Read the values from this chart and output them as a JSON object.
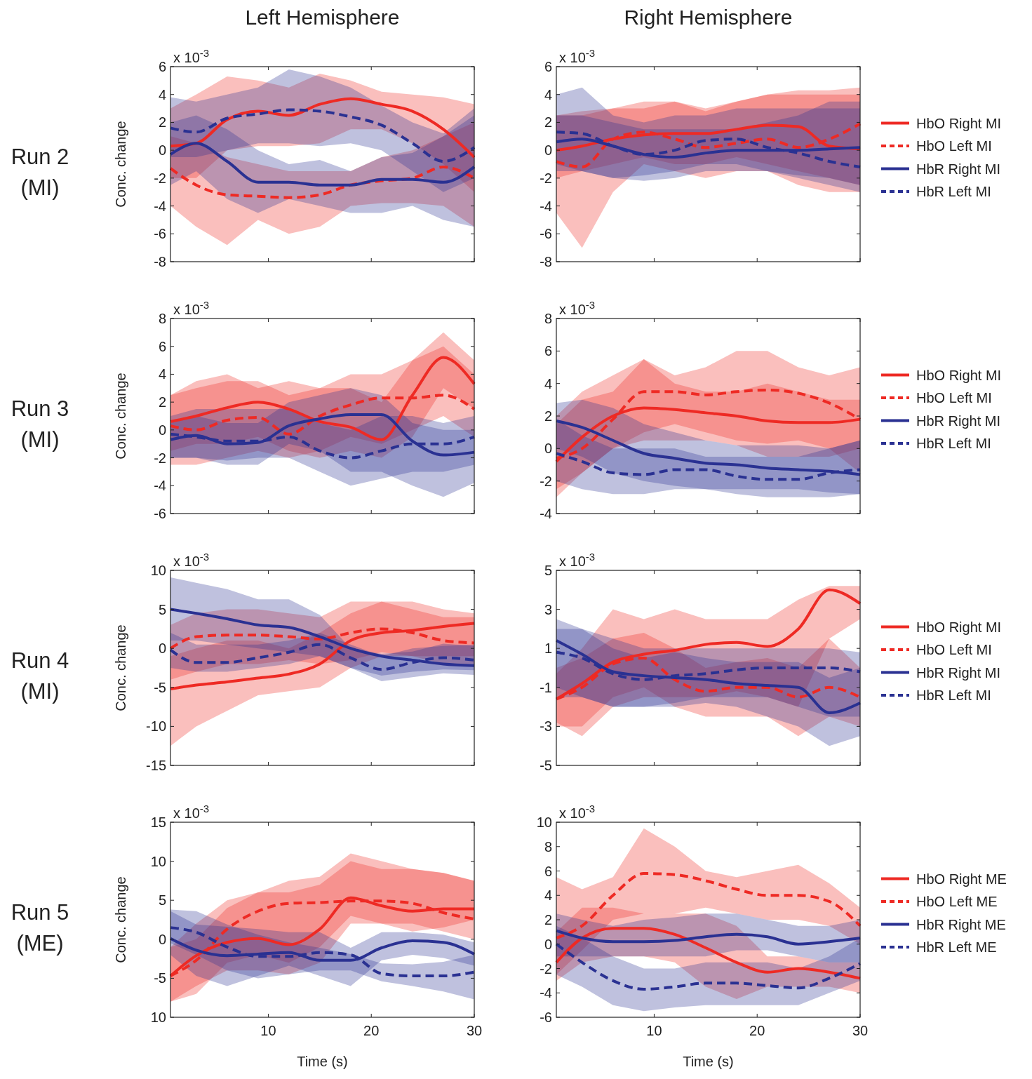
{
  "chart_data": [
    {
      "type": "line",
      "title": "Left Hemisphere",
      "ylabel": "Conc. change",
      "annotations": [
        "x 10$^{-3}$",
        "Run 2",
        "(MI)"
      ],
      "x": [
        0.5,
        3,
        6,
        9,
        12,
        15,
        18,
        21,
        24,
        27,
        30
      ],
      "xlim": [
        0.5,
        30
      ],
      "xticks": [
        {
          "value": 10,
          "label": null
        },
        {
          "value": 20,
          "label": null
        },
        {
          "value": 30,
          "label": null
        }
      ],
      "ylim": [
        -8,
        6
      ],
      "yticks": [
        -8,
        -6,
        -4,
        -2,
        0,
        2,
        4,
        6
      ],
      "tick_labels": "y",
      "legend": false,
      "grid": false,
      "series": [
        {
          "color": "#ee2a24",
          "line_style": "solid",
          "values": [
            0.3,
            0.5,
            2.2,
            2.8,
            2.5,
            3.3,
            3.7,
            3.3,
            2.8,
            1.5,
            -0.5
          ],
          "lower": [
            -2,
            -2,
            0,
            0.3,
            0.3,
            0.5,
            1.5,
            1.5,
            0.5,
            -1,
            -3
          ],
          "upper": [
            3,
            4,
            5.3,
            5,
            4.5,
            5.5,
            5,
            4.2,
            4,
            3.8,
            3.3
          ]
        },
        {
          "color": "#ee2a24",
          "line_style": "dashed",
          "values": [
            -1.3,
            -2.5,
            -3.2,
            -3.3,
            -3.4,
            -3.2,
            -2.5,
            -2.2,
            -2,
            -1.2,
            -2
          ],
          "lower": [
            -4,
            -5.5,
            -6.8,
            -5,
            -6,
            -5.5,
            -4,
            -3.8,
            -3.8,
            -4,
            -5.5
          ],
          "upper": [
            1,
            0.5,
            -0.5,
            -1,
            -1.5,
            -1.5,
            -1.5,
            -0.5,
            0,
            1,
            2
          ]
        },
        {
          "color": "#2a3192",
          "line_style": "solid",
          "values": [
            -0.3,
            0.5,
            -0.8,
            -2.3,
            -2.3,
            -2.5,
            -2.5,
            -2.1,
            -2.1,
            -2.3,
            -1.2
          ],
          "lower": [
            -2.5,
            -1.5,
            -3.5,
            -4.5,
            -3.5,
            -4,
            -4.5,
            -4.5,
            -4,
            -5,
            -5.5
          ],
          "upper": [
            2,
            2.5,
            1.5,
            0,
            -1,
            -0.7,
            -1.5,
            -0.5,
            -0.2,
            1,
            2.5
          ]
        },
        {
          "color": "#2a3192",
          "line_style": "dashed",
          "values": [
            1.6,
            1.3,
            2.3,
            2.6,
            2.9,
            2.8,
            2.4,
            1.8,
            0.5,
            -0.8,
            0.2
          ],
          "lower": [
            -0.5,
            -0.5,
            0,
            0.5,
            0.5,
            0.3,
            0.5,
            0,
            -1.5,
            -3,
            -2
          ],
          "upper": [
            3.8,
            3.5,
            4,
            4.5,
            5.8,
            5.3,
            4.5,
            3.2,
            2,
            1.2,
            3
          ]
        }
      ]
    },
    {
      "type": "line",
      "title": "Right Hemisphere",
      "annotations": [
        "x 10$^{-3}$"
      ],
      "x": [
        0.5,
        3,
        6,
        9,
        12,
        15,
        18,
        21,
        24,
        27,
        30
      ],
      "xlim": [
        0.5,
        30
      ],
      "xticks": [
        {
          "value": 10,
          "label": null
        },
        {
          "value": 20,
          "label": null
        },
        {
          "value": 30,
          "label": null
        }
      ],
      "ylim": [
        -8,
        6
      ],
      "yticks": [
        -8,
        -6,
        -4,
        -2,
        0,
        2,
        4,
        6
      ],
      "tick_labels": "y",
      "legend": "right",
      "grid": false,
      "series": [
        {
          "name": "HbO Right MI",
          "color": "#ee2a24",
          "line_style": "solid",
          "values": [
            0,
            0.3,
            0.8,
            1.1,
            1.2,
            1.2,
            1.5,
            1.8,
            1.7,
            0.3,
            0.1
          ],
          "lower": [
            -2,
            -1.5,
            -1,
            -0.5,
            -1,
            -1,
            -0.5,
            -1,
            -1.5,
            -2,
            -2.5
          ],
          "upper": [
            2.5,
            2.5,
            3,
            3,
            3.5,
            3,
            3.5,
            4,
            4,
            4,
            4
          ]
        },
        {
          "name": "HbO Left MI",
          "color": "#ee2a24",
          "line_style": "dashed",
          "values": [
            -0.8,
            -1.2,
            0.8,
            1.3,
            0.8,
            0.2,
            0.5,
            0.8,
            0.2,
            0.8,
            1.9
          ],
          "lower": [
            -4.5,
            -7,
            -3,
            -1,
            -1.5,
            -2,
            -1.5,
            -1.5,
            -2.5,
            -3,
            -3
          ],
          "upper": [
            2.5,
            2.8,
            3,
            3.5,
            3.5,
            2.8,
            3.5,
            4,
            4.3,
            4.3,
            4.5
          ]
        },
        {
          "name": "HbR Right MI",
          "color": "#2a3192",
          "line_style": "solid",
          "values": [
            0.6,
            0.8,
            0.3,
            -0.3,
            -0.5,
            -0.2,
            0,
            0,
            0,
            0.1,
            0.2
          ],
          "lower": [
            -1.5,
            -1.5,
            -2,
            -2.2,
            -2,
            -1.5,
            -1.5,
            -1.5,
            -1.8,
            -2,
            -2.5
          ],
          "upper": [
            2.5,
            2.5,
            2,
            1.5,
            1.5,
            1.5,
            1.5,
            2,
            2.5,
            3.5,
            3.5
          ]
        },
        {
          "name": "HbR Left MI",
          "color": "#2a3192",
          "line_style": "dashed",
          "values": [
            1.3,
            1.2,
            0.3,
            -0.3,
            0,
            0.7,
            0.8,
            0.2,
            -0.2,
            -0.8,
            -1.2
          ],
          "lower": [
            -1,
            -1.5,
            -2,
            -1.8,
            -1.5,
            -1,
            -1,
            -1.5,
            -2,
            -2.5,
            -3
          ],
          "upper": [
            4,
            4.5,
            2.5,
            2,
            2.5,
            2.5,
            3,
            3,
            3,
            3,
            3
          ]
        }
      ]
    },
    {
      "type": "line",
      "ylabel": "Conc. change",
      "annotations": [
        "x 10$^{-3}$",
        "Run 3",
        "(MI)"
      ],
      "x": [
        0.5,
        3,
        6,
        9,
        12,
        15,
        18,
        21,
        24,
        27,
        30
      ],
      "xlim": [
        0.5,
        30
      ],
      "xticks": [
        {
          "value": 10,
          "label": null
        },
        {
          "value": 20,
          "label": null
        },
        {
          "value": 30,
          "label": null
        }
      ],
      "ylim": [
        -6,
        8
      ],
      "yticks": [
        -6,
        -4,
        -2,
        0,
        2,
        4,
        6,
        8
      ],
      "tick_labels": "y",
      "legend": false,
      "grid": false,
      "series": [
        {
          "color": "#ee2a24",
          "line_style": "solid",
          "values": [
            0.6,
            1,
            1.6,
            2,
            1.5,
            0.6,
            0.2,
            -0.7,
            2.5,
            5.2,
            3.3
          ],
          "lower": [
            -1.5,
            -1,
            -1,
            -0.5,
            -1.5,
            -2,
            -1.5,
            -2,
            -0.5,
            3,
            1.5
          ],
          "upper": [
            2.5,
            3.5,
            4,
            3,
            3.5,
            3,
            3,
            2,
            5,
            7,
            5
          ]
        },
        {
          "color": "#ee2a24",
          "line_style": "dashed",
          "values": [
            0.3,
            0,
            0.7,
            0.9,
            -0.3,
            1,
            1.8,
            2.3,
            2.3,
            2.5,
            1.5
          ],
          "lower": [
            -2.5,
            -2.5,
            -2,
            -1.5,
            -2,
            -1.5,
            -0.5,
            -1,
            0,
            1,
            -0.5
          ],
          "upper": [
            2.5,
            3,
            3.5,
            3.5,
            2.5,
            3,
            4,
            4,
            5,
            6,
            4
          ]
        },
        {
          "color": "#2a3192",
          "line_style": "solid",
          "values": [
            -0.7,
            -0.4,
            -1,
            -0.9,
            0.3,
            0.8,
            1.1,
            1.1,
            -0.8,
            -1.8,
            -1.6
          ],
          "lower": [
            -2,
            -2,
            -2.5,
            -2.5,
            -1,
            -1.5,
            -3,
            -3,
            -4,
            -4.8,
            -3.8
          ],
          "upper": [
            0.5,
            1,
            0.5,
            0.5,
            2,
            2.5,
            3,
            2.5,
            0.5,
            0,
            0
          ]
        },
        {
          "color": "#2a3192",
          "line_style": "dashed",
          "values": [
            -0.3,
            -0.5,
            -0.8,
            -0.8,
            -0.5,
            -1.5,
            -2,
            -1.5,
            -1,
            -1,
            -0.5
          ],
          "lower": [
            -2,
            -2,
            -2.2,
            -2,
            -2,
            -3,
            -4,
            -3.5,
            -3,
            -3,
            -2.5
          ],
          "upper": [
            1,
            1.5,
            1.5,
            1.5,
            1.5,
            0.5,
            0,
            1,
            1,
            0.5,
            1
          ]
        }
      ]
    },
    {
      "type": "line",
      "annotations": [
        "x 10$^{-3}$"
      ],
      "x": [
        0.5,
        3,
        6,
        9,
        12,
        15,
        18,
        21,
        24,
        27,
        30
      ],
      "xlim": [
        0.5,
        30
      ],
      "xticks": [
        {
          "value": 10,
          "label": null
        },
        {
          "value": 20,
          "label": null
        },
        {
          "value": 30,
          "label": null
        }
      ],
      "ylim": [
        -4,
        8
      ],
      "yticks": [
        -4,
        -2,
        0,
        2,
        4,
        6,
        8
      ],
      "tick_labels": "y",
      "legend": "right",
      "grid": false,
      "series": [
        {
          "name": "HbO Right MI",
          "color": "#ee2a24",
          "line_style": "solid",
          "values": [
            -0.8,
            0.7,
            2,
            2.5,
            2.4,
            2.2,
            2,
            1.7,
            1.6,
            1.6,
            1.8
          ],
          "lower": [
            -3,
            -1.5,
            0,
            0.5,
            0.5,
            0.5,
            0.2,
            -0.5,
            -0.5,
            -0.5,
            0
          ],
          "upper": [
            1.5,
            3,
            3.5,
            5.5,
            4,
            3.5,
            3.5,
            4,
            3.5,
            3,
            3
          ]
        },
        {
          "name": "HbO Left MI",
          "color": "#ee2a24",
          "line_style": "dashed",
          "values": [
            -0.6,
            0,
            1.8,
            3.5,
            3.5,
            3.3,
            3.5,
            3.6,
            3.4,
            2.8,
            1.8
          ],
          "lower": [
            -2.5,
            -1.5,
            0,
            1,
            1.5,
            1,
            0.5,
            0.3,
            0.5,
            0,
            -1.5
          ],
          "upper": [
            2,
            3.5,
            4.5,
            5.5,
            4.5,
            5,
            6,
            6,
            5,
            4.5,
            5
          ]
        },
        {
          "name": "HbR Right MI",
          "color": "#2a3192",
          "line_style": "solid",
          "values": [
            1.7,
            1.3,
            0.5,
            -0.3,
            -0.6,
            -0.9,
            -1,
            -1.2,
            -1.3,
            -1.4,
            -1.6
          ],
          "lower": [
            0,
            -0.5,
            -1.5,
            -2,
            -2.3,
            -2.5,
            -2.5,
            -2.5,
            -2.5,
            -2.7,
            -2.8
          ],
          "upper": [
            2.8,
            3,
            2.5,
            1.5,
            1,
            0.5,
            0.2,
            0.2,
            0.2,
            0,
            0.5
          ]
        },
        {
          "name": "HbR Left MI",
          "color": "#2a3192",
          "line_style": "dashed",
          "values": [
            -0.3,
            -0.8,
            -1.5,
            -1.6,
            -1.3,
            -1.3,
            -1.7,
            -1.9,
            -1.9,
            -1.5,
            -1.3
          ],
          "lower": [
            -2,
            -2.5,
            -2.8,
            -2.8,
            -2.5,
            -2.5,
            -2.8,
            -3,
            -3,
            -3,
            -2.8
          ],
          "upper": [
            1.8,
            0.8,
            0,
            0,
            0,
            -0.5,
            -0.5,
            -0.5,
            -0.5,
            0,
            0.5
          ]
        }
      ]
    },
    {
      "type": "line",
      "ylabel": "Conc. change",
      "annotations": [
        "x 10$^{-3}$",
        "Run 4",
        "(MI)"
      ],
      "x": [
        0.5,
        3,
        6,
        9,
        12,
        15,
        18,
        21,
        24,
        27,
        30
      ],
      "xlim": [
        0.5,
        30
      ],
      "xticks": [
        {
          "value": 10,
          "label": null
        },
        {
          "value": 20,
          "label": null
        },
        {
          "value": 30,
          "label": null
        }
      ],
      "ylim": [
        -15,
        10
      ],
      "yticks": [
        -15,
        -10,
        -5,
        0,
        5,
        10
      ],
      "tick_labels": "y",
      "legend": false,
      "grid": false,
      "series": [
        {
          "color": "#ee2a24",
          "line_style": "solid",
          "values": [
            -5.2,
            -4.7,
            -4.3,
            -3.8,
            -3.3,
            -2,
            1,
            2,
            2.3,
            2.8,
            3.2
          ],
          "lower": [
            -12.5,
            -10,
            -8,
            -6,
            -5.5,
            -5,
            -2.5,
            -1,
            -1,
            -1,
            -1
          ],
          "upper": [
            -1,
            0,
            1,
            1,
            0,
            2,
            4.5,
            6,
            6,
            5,
            4.5
          ]
        },
        {
          "color": "#ee2a24",
          "line_style": "dashed",
          "values": [
            0,
            1.5,
            1.7,
            1.7,
            1.5,
            1.2,
            2,
            2.5,
            2,
            1,
            0.7
          ],
          "lower": [
            -4,
            -3,
            -2,
            -2,
            -1.5,
            -2,
            -1.5,
            -0.5,
            -1,
            -2,
            -2
          ],
          "upper": [
            3,
            4.5,
            5,
            5,
            4.5,
            4,
            6,
            6,
            5,
            4,
            4
          ]
        },
        {
          "color": "#2a3192",
          "line_style": "solid",
          "values": [
            5,
            4.5,
            3.8,
            3,
            2.7,
            1.5,
            0,
            -1,
            -1.5,
            -2,
            -2.2
          ],
          "lower": [
            1,
            1,
            0.5,
            0,
            -0.5,
            -1,
            -2.5,
            -4.2,
            -3.7,
            -3.2,
            -3.4
          ],
          "upper": [
            9.1,
            8.4,
            7.6,
            6.3,
            6.3,
            4.3,
            0,
            -0.7,
            -0.4,
            0.6,
            0.3
          ]
        },
        {
          "color": "#2a3192",
          "line_style": "dashed",
          "values": [
            -0.2,
            -1.8,
            -1.8,
            -1.2,
            -0.5,
            0.5,
            -1.2,
            -2.7,
            -1.8,
            -1.2,
            -1.5
          ],
          "lower": [
            -2.5,
            -3,
            -3,
            -2.5,
            -2,
            -1,
            -2.5,
            -3.5,
            -3,
            -2.7,
            -2.8
          ],
          "upper": [
            2,
            0.5,
            0.5,
            0.5,
            1,
            2,
            0.5,
            -1,
            0,
            0.3,
            0.5
          ]
        }
      ]
    },
    {
      "type": "line",
      "annotations": [
        "x 10$^{-3}$"
      ],
      "x": [
        0.5,
        3,
        6,
        9,
        12,
        15,
        18,
        21,
        24,
        27,
        30
      ],
      "xlim": [
        0.5,
        30
      ],
      "xticks": [
        {
          "value": 10,
          "label": null
        },
        {
          "value": 20,
          "label": null
        },
        {
          "value": 30,
          "label": null
        }
      ],
      "ylim": [
        -5,
        5
      ],
      "yticks": [
        -5,
        -3,
        -1,
        1,
        3,
        5
      ],
      "tick_labels": "y",
      "legend": "right",
      "grid": false,
      "series": [
        {
          "name": "HbO Right MI",
          "color": "#ee2a24",
          "line_style": "solid",
          "values": [
            -1.6,
            -0.8,
            0.3,
            0.7,
            0.9,
            1.2,
            1.3,
            1.1,
            2,
            4,
            3.3
          ],
          "lower": [
            -2.8,
            -3.5,
            -2,
            -1.5,
            -1.5,
            -1.5,
            -1.2,
            -1.5,
            -2,
            1.5,
            2.5
          ],
          "upper": [
            -0.3,
            1,
            3,
            2.5,
            3,
            2.5,
            2.5,
            2.5,
            3.5,
            4.2,
            4.2
          ]
        },
        {
          "name": "HbO Left MI",
          "color": "#ee2a24",
          "line_style": "dashed",
          "values": [
            -1.6,
            -1,
            0.2,
            0.5,
            -0.6,
            -1.2,
            -1,
            -1,
            -1.5,
            -1,
            -1.5
          ],
          "lower": [
            -3,
            -3,
            -1.5,
            -1,
            -2,
            -2.5,
            -2.5,
            -2.5,
            -3.5,
            -2.5,
            -3
          ],
          "upper": [
            0,
            0.5,
            1.5,
            1.8,
            1,
            0,
            0.3,
            0.5,
            0,
            1.5,
            0
          ]
        },
        {
          "name": "HbR Right MI",
          "color": "#2a3192",
          "line_style": "solid",
          "values": [
            1.4,
            0.7,
            -0.2,
            -0.4,
            -0.5,
            -0.6,
            -0.8,
            -0.9,
            -1,
            -2.3,
            -1.8
          ],
          "lower": [
            -1,
            -1.5,
            -2,
            -2,
            -2,
            -1.8,
            -2,
            -2.5,
            -3,
            -4,
            -3.5
          ],
          "upper": [
            2.5,
            2,
            1,
            0.5,
            0.8,
            0.5,
            0.3,
            0.3,
            0.3,
            -0.5,
            0
          ]
        },
        {
          "name": "HbR Left MI",
          "color": "#2a3192",
          "line_style": "dashed",
          "values": [
            0.8,
            0.5,
            -0.3,
            -0.6,
            -0.4,
            -0.3,
            -0.1,
            0,
            0,
            0,
            -0.2
          ],
          "lower": [
            -1.5,
            -1.5,
            -2,
            -2,
            -1.8,
            -1.5,
            -1.5,
            -1.5,
            -2,
            -2.5,
            -2.5
          ],
          "upper": [
            2,
            2,
            1.5,
            1,
            1,
            1,
            1,
            1,
            1,
            1,
            0.8
          ]
        }
      ]
    },
    {
      "type": "line",
      "xlabel": "Time (s)",
      "ylabel": "Conc. change",
      "annotations": [
        "x 10$^{-3}$",
        "Run 5",
        "(ME)"
      ],
      "x": [
        0.5,
        3,
        6,
        9,
        12,
        15,
        18,
        21,
        24,
        27,
        30
      ],
      "xlim": [
        0.5,
        30
      ],
      "xticks": [
        10,
        20,
        30
      ],
      "ylim": [
        -10,
        15
      ],
      "yticks": [
        {
          "value": -10,
          "label": "10"
        },
        -5,
        0,
        5,
        10,
        15
      ],
      "legend": false,
      "grid": false,
      "series": [
        {
          "color": "#ee2a24",
          "line_style": "solid",
          "values": [
            -4.7,
            -2.1,
            -0.4,
            0.1,
            -0.7,
            1.3,
            5.3,
            4.3,
            3.6,
            3.9,
            3.9
          ],
          "lower": [
            -8,
            -6,
            -4,
            -4,
            -4.5,
            -3,
            2,
            2,
            1,
            1.5,
            2.5
          ],
          "upper": [
            -1,
            2,
            5,
            6,
            6,
            7,
            10,
            9,
            9,
            8.5,
            7.5
          ]
        },
        {
          "color": "#ee2a24",
          "line_style": "dashed",
          "values": [
            -4.7,
            -2.7,
            1.3,
            3.6,
            4.6,
            4.7,
            4.9,
            4.9,
            4.6,
            3.4,
            2.6
          ],
          "lower": [
            -8,
            -7,
            -3,
            -2,
            -3,
            -1,
            3,
            2,
            2,
            1,
            0
          ],
          "upper": [
            -1,
            0,
            4,
            6,
            7.5,
            8,
            11,
            10,
            9,
            8.5,
            7.5
          ]
        },
        {
          "color": "#2a3192",
          "line_style": "solid",
          "values": [
            0.1,
            -1.4,
            -2.1,
            -1.9,
            -1.7,
            -2.7,
            -2.7,
            -1.1,
            -0.2,
            -0.4,
            -1.9
          ],
          "lower": [
            -2,
            -4.7,
            -6,
            -4.7,
            -3.4,
            -4.7,
            -6,
            -2.7,
            -2,
            -2.4,
            -3.4
          ],
          "upper": [
            3.6,
            1.9,
            1.6,
            1.3,
            0.9,
            0.9,
            -1.1,
            0.9,
            0.9,
            0.6,
            -0.4
          ]
        },
        {
          "color": "#2a3192",
          "line_style": "dashed",
          "values": [
            1.5,
            0.9,
            -1,
            -2.2,
            -2.2,
            -1.7,
            -2,
            -4.4,
            -4.7,
            -4.7,
            -4.2
          ],
          "lower": [
            -0.5,
            -2,
            -4,
            -5,
            -4.5,
            -4,
            -4,
            -5.4,
            -6,
            -6.7,
            -7.7
          ],
          "upper": [
            3.8,
            3.6,
            1.9,
            0.6,
            -0.4,
            -1.1,
            -1.9,
            -3.1,
            -3.2,
            -2.9,
            -2
          ]
        }
      ]
    },
    {
      "type": "line",
      "xlabel": "Time (s)",
      "annotations": [
        "x 10$^{-3}$"
      ],
      "x": [
        0.5,
        3,
        6,
        9,
        12,
        15,
        18,
        21,
        24,
        27,
        30
      ],
      "xlim": [
        0.5,
        30
      ],
      "xticks": [
        10,
        20,
        30
      ],
      "ylim": [
        -6,
        10
      ],
      "yticks": [
        -6,
        -4,
        -2,
        0,
        2,
        4,
        6,
        8,
        10
      ],
      "legend": "right",
      "grid": false,
      "series": [
        {
          "name": "HbO Right ME",
          "color": "#ee2a24",
          "line_style": "solid",
          "values": [
            -1.5,
            0.5,
            1.3,
            1.3,
            0.8,
            -0.3,
            -1.5,
            -2.3,
            -2,
            -2.3,
            -2.8
          ],
          "lower": [
            -3,
            -1.5,
            -1,
            -1,
            -1.5,
            -3.5,
            -4.5,
            -3.5,
            -3.5,
            -3.5,
            -4
          ],
          "upper": [
            1,
            3,
            3,
            2.5,
            2.5,
            2.5,
            1.5,
            -1,
            -1,
            -1.5,
            -1.5
          ]
        },
        {
          "name": "HbO Left ME",
          "color": "#ee2a24",
          "line_style": "dashed",
          "values": [
            0.5,
            1.5,
            4,
            5.8,
            5.7,
            5.2,
            4.5,
            4,
            4,
            3.5,
            1.5
          ],
          "lower": [
            -2.5,
            -0.5,
            2,
            2.5,
            2.5,
            3,
            2.5,
            2,
            2,
            1.5,
            0
          ],
          "upper": [
            5.5,
            4.5,
            5.5,
            9.5,
            8,
            6,
            5.5,
            6,
            6.5,
            5,
            3
          ]
        },
        {
          "name": "HbR Right ME",
          "color": "#2a3192",
          "line_style": "solid",
          "values": [
            1.1,
            0.5,
            0.2,
            0.2,
            0.3,
            0.6,
            0.8,
            0.6,
            0,
            0.2,
            0.5
          ],
          "lower": [
            -1,
            -1,
            -1,
            -1,
            -1,
            -1,
            -0.5,
            -0.5,
            -1,
            -1.5,
            -1.5
          ],
          "upper": [
            2.5,
            2,
            1.5,
            2,
            2.2,
            2.5,
            2.5,
            2,
            1.5,
            1.5,
            2
          ]
        },
        {
          "name": "HbR Left ME",
          "color": "#2a3192",
          "line_style": "dashed",
          "values": [
            0,
            -1.5,
            -3,
            -3.7,
            -3.5,
            -3.2,
            -3.2,
            -3.4,
            -3.6,
            -2.8,
            -1.6
          ],
          "lower": [
            -2.5,
            -3.5,
            -5,
            -5.5,
            -5.2,
            -5,
            -5,
            -5,
            -5,
            -4,
            -3
          ],
          "upper": [
            1.5,
            0.5,
            -1,
            -2,
            -2,
            -1.5,
            -1.5,
            -1.5,
            -2,
            -1,
            0.5
          ]
        }
      ]
    }
  ]
}
